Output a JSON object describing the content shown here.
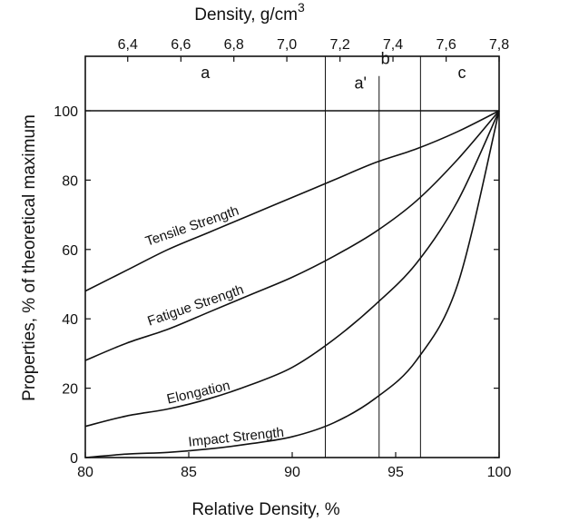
{
  "chart_data": {
    "type": "line",
    "xlabel": "Relative Density, %",
    "ylabel": "Properties, % of theoretical maximum",
    "top_axis_label": "Density, g/cm",
    "top_axis_label_sup": "3",
    "xlim": [
      80,
      100
    ],
    "ylim": [
      0,
      100
    ],
    "x_ticks": [
      80,
      85,
      90,
      95,
      100
    ],
    "x_tick_labels": [
      "80",
      "85",
      "90",
      "95",
      "100"
    ],
    "y_ticks": [
      0,
      20,
      40,
      60,
      80,
      100
    ],
    "y_tick_labels": [
      "0",
      "20",
      "40",
      "60",
      "80",
      "100"
    ],
    "top_ticks": [
      {
        "label": "6,4",
        "x": 82.05
      },
      {
        "label": "6,6",
        "x": 84.62
      },
      {
        "label": "6,8",
        "x": 87.18
      },
      {
        "label": "7,0",
        "x": 89.74
      },
      {
        "label": "7,2",
        "x": 92.31
      },
      {
        "label": "7,4",
        "x": 94.87
      },
      {
        "label": "7,6",
        "x": 97.44
      },
      {
        "label": "7,8",
        "x": 100.0
      }
    ],
    "region_boundaries": [
      91.6,
      94.2,
      96.2
    ],
    "region_labels": [
      {
        "label": "a",
        "x": 85.8,
        "y": 111
      },
      {
        "label": "a'",
        "x": 93.3,
        "y": 108
      },
      {
        "label": "b",
        "x": 94.5,
        "y": 115
      },
      {
        "label": "c",
        "x": 98.2,
        "y": 111
      }
    ],
    "series": [
      {
        "name": "Tensile Strength",
        "x": [
          80,
          82,
          84,
          86,
          88,
          90,
          92,
          94,
          96,
          98,
          100
        ],
        "y": [
          48,
          54,
          60,
          65,
          70,
          75,
          80,
          85,
          89,
          94,
          100
        ]
      },
      {
        "name": "Fatigue Strength",
        "x": [
          80,
          82,
          84,
          86,
          88,
          90,
          92,
          94,
          96,
          98,
          100
        ],
        "y": [
          28,
          33,
          37,
          42,
          47,
          52,
          58,
          65,
          74,
          86,
          100
        ]
      },
      {
        "name": "Elongation",
        "x": [
          80,
          82,
          84,
          86,
          88,
          90,
          92,
          94,
          96,
          98,
          100
        ],
        "y": [
          9,
          12,
          14,
          17,
          21,
          26,
          34,
          44,
          56,
          74,
          100
        ]
      },
      {
        "name": "Impact Strength",
        "x": [
          80,
          82,
          84,
          86,
          88,
          90,
          92,
          94,
          96,
          98,
          100
        ],
        "y": [
          0,
          1,
          1.5,
          2.5,
          4,
          6,
          10,
          17,
          28,
          50,
          100
        ]
      }
    ],
    "curve_labels": [
      {
        "series": "Tensile Strength",
        "x": 83.0,
        "y": 61,
        "angle": -19
      },
      {
        "series": "Fatigue Strength",
        "x": 83.1,
        "y": 38,
        "angle": -19
      },
      {
        "series": "Elongation",
        "x": 84.0,
        "y": 15.5,
        "angle": -13
      },
      {
        "series": "Impact Strength",
        "x": 85.0,
        "y": 3.2,
        "angle": -6
      }
    ],
    "grid": false
  }
}
